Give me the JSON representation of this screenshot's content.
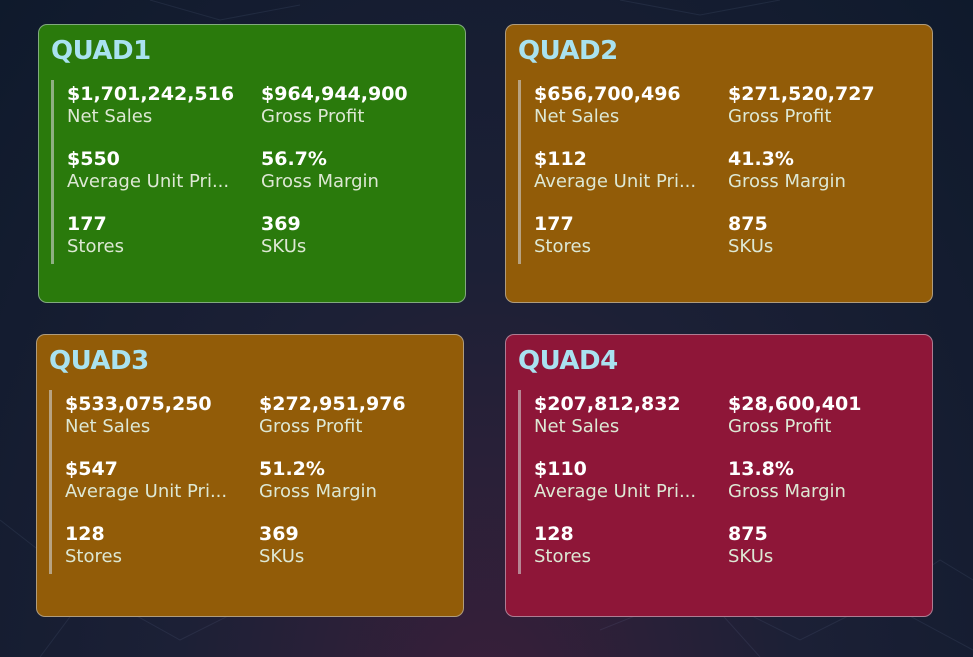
{
  "colors": {
    "quad1_bg": "#2a7a0c",
    "quad2_bg": "#925c08",
    "quad3_bg": "#925c08",
    "quad4_bg": "#8e1638",
    "title_color": "#a9e2f0"
  },
  "quads": [
    {
      "title": "QUAD1",
      "metrics": [
        {
          "value": "$1,701,242,516",
          "label": "Net Sales"
        },
        {
          "value": "$964,944,900",
          "label": "Gross Profit"
        },
        {
          "value": "$550",
          "label": "Average Unit Pri..."
        },
        {
          "value": "56.7%",
          "label": "Gross Margin"
        },
        {
          "value": "177",
          "label": "Stores"
        },
        {
          "value": "369",
          "label": "SKUs"
        }
      ]
    },
    {
      "title": "QUAD2",
      "metrics": [
        {
          "value": "$656,700,496",
          "label": "Net Sales"
        },
        {
          "value": "$271,520,727",
          "label": "Gross Profit"
        },
        {
          "value": "$112",
          "label": "Average Unit Pri..."
        },
        {
          "value": "41.3%",
          "label": "Gross Margin"
        },
        {
          "value": "177",
          "label": "Stores"
        },
        {
          "value": "875",
          "label": "SKUs"
        }
      ]
    },
    {
      "title": "QUAD3",
      "metrics": [
        {
          "value": "$533,075,250",
          "label": "Net Sales"
        },
        {
          "value": "$272,951,976",
          "label": "Gross Profit"
        },
        {
          "value": "$547",
          "label": "Average Unit Pri..."
        },
        {
          "value": "51.2%",
          "label": "Gross Margin"
        },
        {
          "value": "128",
          "label": "Stores"
        },
        {
          "value": "369",
          "label": "SKUs"
        }
      ]
    },
    {
      "title": "QUAD4",
      "metrics": [
        {
          "value": "$207,812,832",
          "label": "Net Sales"
        },
        {
          "value": "$28,600,401",
          "label": "Gross Profit"
        },
        {
          "value": "$110",
          "label": "Average Unit Pri..."
        },
        {
          "value": "13.8%",
          "label": "Gross Margin"
        },
        {
          "value": "128",
          "label": "Stores"
        },
        {
          "value": "875",
          "label": "SKUs"
        }
      ]
    }
  ]
}
